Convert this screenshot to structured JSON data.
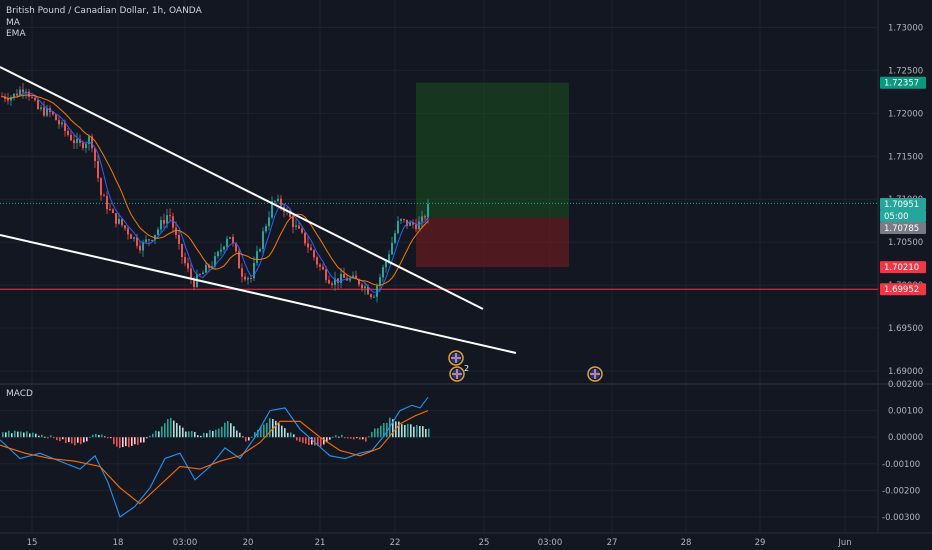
{
  "header": {
    "title": "British Pound / Canadian Dollar, 1h, OANDA",
    "indicator1": "MA",
    "indicator2": "EMA",
    "macd_label": "MACD"
  },
  "colors": {
    "background": "#131722",
    "up_candle": "#26a69a",
    "down_candle": "#ef5350",
    "ma_line": "#f57c00",
    "ema_line": "#2962ff",
    "profit_zone": "#1b5e20",
    "loss_zone": "#7f1d1d",
    "trendline": "#ffffff",
    "macd_line": "#2196f3",
    "signal_line": "#ff6d00"
  },
  "chart_data": {
    "type": "candlestick",
    "symbol": "British Pound / Canadian Dollar",
    "interval": "1h",
    "source": "OANDA",
    "y_axis_price": {
      "ticks": [
        "1.73000",
        "1.72500",
        "1.72000",
        "1.71500",
        "1.71000",
        "1.70500",
        "1.70000",
        "1.69500",
        "1.69000"
      ],
      "range": [
        1.6886,
        1.7332
      ]
    },
    "price_badges": [
      {
        "label": "1.72357",
        "value": 1.72357,
        "color": "#089981",
        "name": "target-price-badge"
      },
      {
        "label": "1.70951",
        "value": 1.70951,
        "color": "#26a69a",
        "name": "last-price-badge"
      },
      {
        "label": "05:00",
        "value": 1.7083,
        "color": "#26a69a",
        "name": "countdown-badge"
      },
      {
        "label": "1.70785",
        "value": 1.70785,
        "color": "#787b86",
        "name": "entry-price-badge"
      },
      {
        "label": "1.70210",
        "value": 1.7021,
        "color": "#f23645",
        "name": "stop-price-badge"
      },
      {
        "label": "1.69952",
        "value": 1.69952,
        "color": "#f23645",
        "name": "support-price-badge"
      }
    ],
    "horizontal_lines": [
      {
        "value": 1.70951,
        "color": "#26a69a",
        "style": "dotted"
      },
      {
        "value": 1.69952,
        "color": "#f23645",
        "style": "solid"
      }
    ],
    "position": {
      "entry": 1.70785,
      "target": 1.72357,
      "stop": 1.7021
    },
    "x_axis": {
      "ticks": [
        "15",
        "18",
        "03:00",
        "20",
        "21",
        "22",
        "25",
        "03:00",
        "27",
        "28",
        "29",
        "Jun"
      ]
    },
    "y_axis_macd": {
      "ticks": [
        "0.00200",
        "0.00100",
        "0.00000",
        "-0.00100",
        "-0.00200",
        "-0.00300"
      ],
      "range": [
        -0.0036,
        0.002
      ]
    },
    "event_marker_count": "2"
  }
}
